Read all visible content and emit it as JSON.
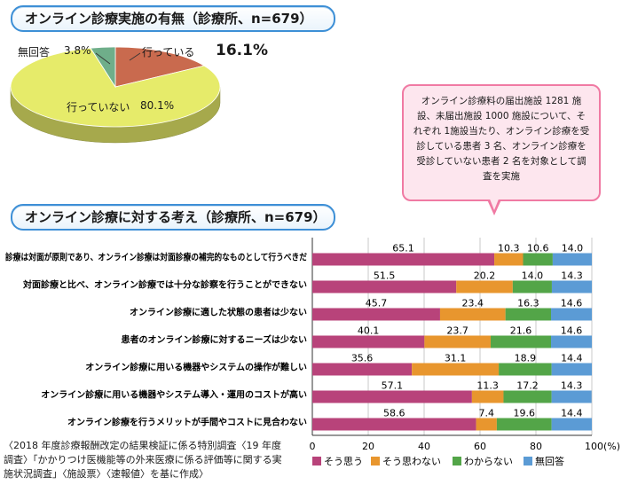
{
  "pie": {
    "title": "オンライン診療実施の有無（診療所、n=679）",
    "slices": [
      {
        "label": "行っている",
        "value": 16.1,
        "value_text": "16.1%",
        "color": "#c96a4e"
      },
      {
        "label": "無回答",
        "value": 3.8,
        "value_text": "3.8%",
        "color": "#6fae8a"
      },
      {
        "label": "行っていない",
        "value": 80.1,
        "value_text": "80.1%",
        "color": "#e6eb6a"
      }
    ]
  },
  "callout": {
    "text": "オンライン診療料の届出施設 1281 施設、未届出施設 1000 施設について、それぞれ 1施設当たり、オンライン診療を受診している患者 3 名、オンライン診療を受診していない患者 2 名を対象として調査を実施"
  },
  "chart_data": {
    "type": "bar",
    "orientation": "horizontal",
    "stacked": true,
    "title": "オンライン診療に対する考え（診療所、n=679）",
    "categories": [
      "診療は対面が原則であり、オンライン診療は対面診療の補完的なものとして行うべきだ",
      "対面診療と比べ、オンライン診療では十分な診察を行うことができない",
      "オンライン診療に適した状態の患者は少ない",
      "患者のオンライン診療に対するニーズは少ない",
      "オンライン診療に用いる機器やシステムの操作が難しい",
      "オンライン診療に用いる機器やシステム導入・運用のコストが高い",
      "オンライン診療を行うメリットが手間やコストに見合わない"
    ],
    "series": [
      {
        "name": "そう思う",
        "color": "#b8437a",
        "values": [
          65.1,
          51.5,
          45.7,
          40.1,
          35.6,
          57.1,
          58.6
        ]
      },
      {
        "name": "そう思わない",
        "color": "#e8962e",
        "values": [
          10.3,
          20.2,
          23.4,
          23.7,
          31.1,
          11.3,
          7.4
        ]
      },
      {
        "name": "わからない",
        "color": "#53a548",
        "values": [
          10.6,
          14.0,
          16.3,
          21.6,
          18.9,
          17.2,
          19.6
        ]
      },
      {
        "name": "無回答",
        "color": "#5b9bd5",
        "values": [
          14.0,
          14.3,
          14.6,
          14.6,
          14.4,
          14.3,
          14.4
        ]
      }
    ],
    "value_labels": [
      [
        "65.1",
        "10.3",
        "10.6",
        "14.0"
      ],
      [
        "51.5",
        "20.2",
        "14.0",
        "14.3"
      ],
      [
        "45.7",
        "23.4",
        "16.3",
        "14.6"
      ],
      [
        "40.1",
        "23.7",
        "21.6",
        "14.6"
      ],
      [
        "35.6",
        "31.1",
        "18.9",
        "14.4"
      ],
      [
        "57.1",
        "11.3",
        "17.2",
        "14.3"
      ],
      [
        "58.6",
        "7.4",
        "19.6",
        "14.4"
      ]
    ],
    "xlim": [
      0,
      100
    ],
    "xticks": [
      "0",
      "20",
      "40",
      "60",
      "80",
      "100(%)"
    ],
    "grid": true,
    "legend_position": "bottom"
  },
  "source": "〈2018 年度診療報酬改定の結果検証に係る特別調査〈19 年度調査〉「かかりつけ医機能等の外来医療に係る評価等に関する実施状況調査」〈施設票〉〈速報値〉を基に作成〉"
}
